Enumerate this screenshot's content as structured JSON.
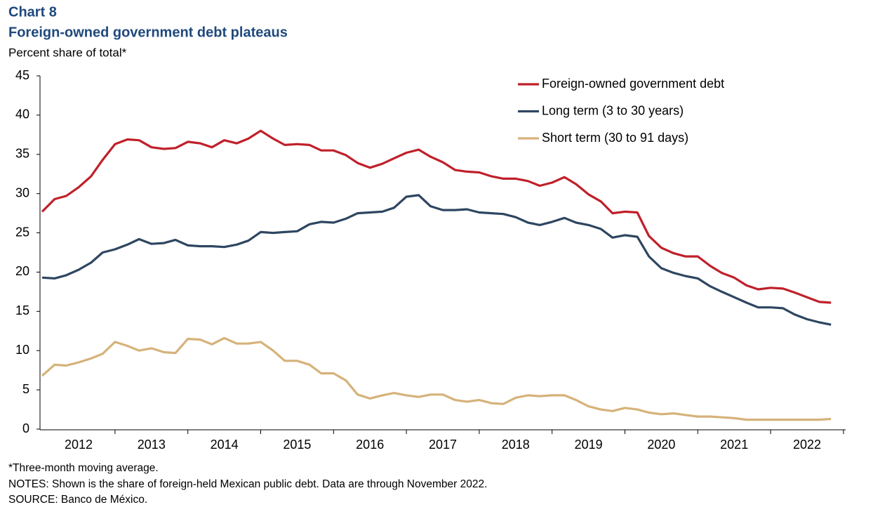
{
  "chart_data": {
    "type": "line",
    "title": "Chart 8",
    "subtitle": "Foreign-owned government debt plateaus",
    "y_label": "Percent share of total*",
    "notes": [
      "*Three-month moving average.",
      "NOTES: Shown is the share of foreign-held Mexican public debt. Data are through November 2022.",
      "SOURCE: Banco de México."
    ],
    "xlim": [
      2011.97,
      2023.03
    ],
    "xticks": [
      {
        "value": 2012.5,
        "label": "2012"
      },
      {
        "value": 2013.5,
        "label": "2013"
      },
      {
        "value": 2014.5,
        "label": "2014"
      },
      {
        "value": 2015.5,
        "label": "2015"
      },
      {
        "value": 2016.5,
        "label": "2016"
      },
      {
        "value": 2017.5,
        "label": "2017"
      },
      {
        "value": 2018.5,
        "label": "2018"
      },
      {
        "value": 2019.5,
        "label": "2019"
      },
      {
        "value": 2020.5,
        "label": "2020"
      },
      {
        "value": 2021.5,
        "label": "2021"
      },
      {
        "value": 2022.5,
        "label": "2022"
      }
    ],
    "ylim": [
      0,
      45
    ],
    "yticks": [
      0,
      5,
      10,
      15,
      20,
      25,
      30,
      35,
      40,
      45
    ],
    "grid": false,
    "legend": "top-right",
    "x": [
      2012,
      2012.17,
      2012.33,
      2012.5,
      2012.67,
      2012.83,
      2013,
      2013.17,
      2013.33,
      2013.5,
      2013.67,
      2013.83,
      2014,
      2014.17,
      2014.33,
      2014.5,
      2014.67,
      2014.83,
      2015,
      2015.17,
      2015.33,
      2015.5,
      2015.67,
      2015.83,
      2016,
      2016.17,
      2016.33,
      2016.5,
      2016.67,
      2016.83,
      2017,
      2017.17,
      2017.33,
      2017.5,
      2017.67,
      2017.83,
      2018,
      2018.17,
      2018.33,
      2018.5,
      2018.67,
      2018.83,
      2019,
      2019.17,
      2019.33,
      2019.5,
      2019.67,
      2019.83,
      2020,
      2020.17,
      2020.33,
      2020.5,
      2020.67,
      2020.83,
      2021,
      2021.17,
      2021.33,
      2021.5,
      2021.67,
      2021.83,
      2022,
      2022.17,
      2022.33,
      2022.5,
      2022.67,
      2022.83
    ],
    "series": [
      {
        "name": "Foreign-owned government debt",
        "color": "#c0202a",
        "values": [
          27.7,
          29.3,
          29.7,
          30.8,
          32.2,
          34.3,
          36.3,
          36.9,
          36.8,
          35.9,
          35.7,
          35.8,
          36.6,
          36.4,
          35.9,
          36.8,
          36.4,
          37.0,
          38.0,
          37.0,
          36.2,
          36.3,
          36.2,
          35.5,
          35.5,
          34.9,
          33.9,
          33.3,
          33.8,
          34.5,
          35.2,
          35.6,
          34.7,
          34.0,
          33.0,
          32.8,
          32.7,
          32.2,
          31.9,
          31.9,
          31.6,
          31.0,
          31.4,
          32.1,
          31.2,
          29.9,
          29.0,
          27.5,
          27.7,
          27.6,
          24.6,
          23.1,
          22.4,
          22.0,
          22.0,
          20.8,
          19.9,
          19.3,
          18.3,
          17.8,
          18.0,
          17.9,
          17.4,
          16.8,
          16.2,
          16.1
        ]
      },
      {
        "name": "Long term (3 to 30 years)",
        "color": "#2e4660",
        "values": [
          19.3,
          19.2,
          19.6,
          20.3,
          21.2,
          22.5,
          22.9,
          23.5,
          24.2,
          23.6,
          23.7,
          24.1,
          23.4,
          23.3,
          23.3,
          23.2,
          23.5,
          24.0,
          25.1,
          25.0,
          25.1,
          25.2,
          26.1,
          26.4,
          26.3,
          26.8,
          27.5,
          27.6,
          27.7,
          28.2,
          29.6,
          29.8,
          28.4,
          27.9,
          27.9,
          28.0,
          27.6,
          27.5,
          27.4,
          27.0,
          26.3,
          26.0,
          26.4,
          26.9,
          26.3,
          26.0,
          25.5,
          24.4,
          24.7,
          24.5,
          22.0,
          20.5,
          19.9,
          19.5,
          19.2,
          18.2,
          17.5,
          16.8,
          16.1,
          15.5,
          15.5,
          15.4,
          14.6,
          14.0,
          13.6,
          13.3
        ]
      },
      {
        "name": "Short term (30 to 91 days)",
        "color": "#d6b27a",
        "values": [
          6.8,
          8.2,
          8.1,
          8.5,
          9.0,
          9.6,
          11.1,
          10.6,
          10.0,
          10.3,
          9.8,
          9.7,
          11.5,
          11.4,
          10.8,
          11.6,
          10.9,
          10.9,
          11.1,
          10.0,
          8.7,
          8.7,
          8.2,
          7.1,
          7.1,
          6.2,
          4.4,
          3.9,
          4.3,
          4.6,
          4.3,
          4.1,
          4.4,
          4.4,
          3.7,
          3.5,
          3.7,
          3.3,
          3.2,
          4.0,
          4.3,
          4.2,
          4.3,
          4.3,
          3.7,
          2.9,
          2.5,
          2.3,
          2.7,
          2.5,
          2.1,
          1.9,
          2.0,
          1.8,
          1.6,
          1.6,
          1.5,
          1.4,
          1.2,
          1.2,
          1.2,
          1.2,
          1.2,
          1.2,
          1.2,
          1.3
        ]
      }
    ]
  }
}
